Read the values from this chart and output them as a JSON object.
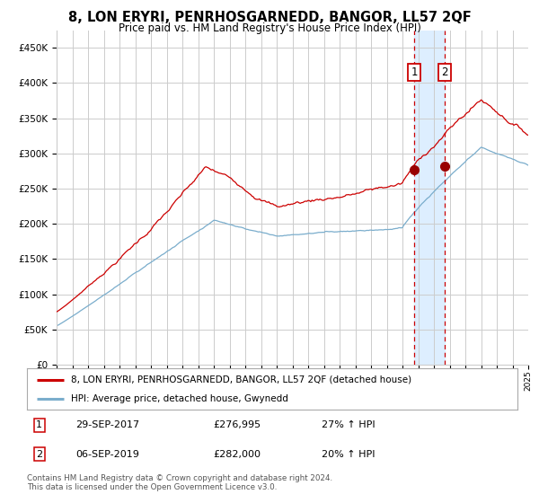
{
  "title": "8, LON ERYRI, PENRHOSGARNEDD, BANGOR, LL57 2QF",
  "subtitle": "Price paid vs. HM Land Registry's House Price Index (HPI)",
  "legend_label_red": "8, LON ERYRI, PENRHOSGARNEDD, BANGOR, LL57 2QF (detached house)",
  "legend_label_blue": "HPI: Average price, detached house, Gwynedd",
  "annotation1_date": "29-SEP-2017",
  "annotation1_price": "£276,995",
  "annotation1_hpi": "27% ↑ HPI",
  "annotation2_date": "06-SEP-2019",
  "annotation2_price": "£282,000",
  "annotation2_hpi": "20% ↑ HPI",
  "footer": "Contains HM Land Registry data © Crown copyright and database right 2024.\nThis data is licensed under the Open Government Licence v3.0.",
  "red_color": "#cc0000",
  "blue_color": "#7aadcc",
  "background_color": "#ffffff",
  "grid_color": "#cccccc",
  "highlight_color": "#ddeeff",
  "annotation_box_color": "#cc0000",
  "ylim": [
    0,
    475000
  ],
  "yticks": [
    0,
    50000,
    100000,
    150000,
    200000,
    250000,
    300000,
    350000,
    400000,
    450000
  ],
  "x_start_year": 1995,
  "x_end_year": 2025,
  "purchase1_year": 2017.75,
  "purchase1_value": 276995,
  "purchase2_year": 2019.67,
  "purchase2_value": 282000
}
